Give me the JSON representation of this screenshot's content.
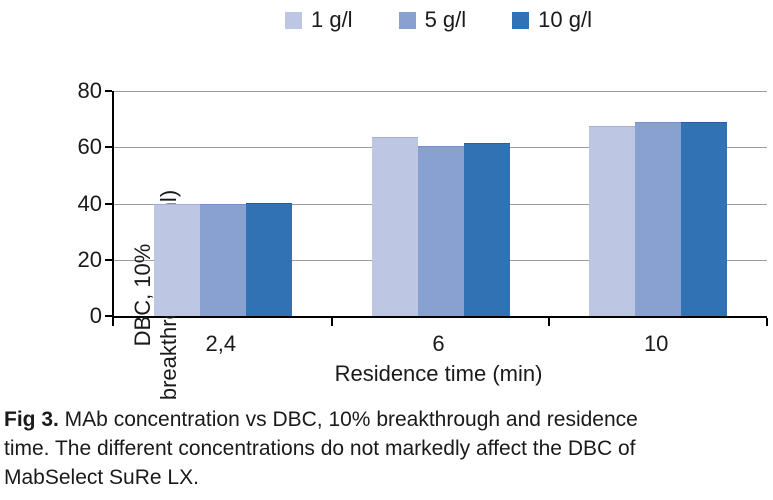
{
  "chart_data": {
    "type": "bar",
    "categories": [
      "2,4",
      "6",
      "10"
    ],
    "series": [
      {
        "name": "1 g/l",
        "color": "#bdc7e3",
        "border_color": "#a2afd6",
        "values": [
          40.0,
          63.5,
          67.5
        ]
      },
      {
        "name": "5 g/l",
        "color": "#88a1d0",
        "border_color": "#7590c4",
        "values": [
          39.7,
          60.5,
          69.0
        ]
      },
      {
        "name": "10 g/l",
        "color": "#3072b4",
        "border_color": "#27609c",
        "values": [
          40.3,
          61.5,
          69.0
        ]
      }
    ],
    "xlabel": "Residence time (min)",
    "ylabel_line1": "DBC, 10%",
    "ylabel_line2": "breakthrough (mg/ml)",
    "ylim": [
      0,
      80
    ],
    "yticks": [
      0,
      20,
      40,
      60,
      80
    ],
    "grid": true,
    "gridline_color": "#9d9d9d",
    "axis_color": "#000000",
    "legend_position": "top"
  },
  "caption": {
    "label": "Fig 3.",
    "line1_rest": " MAb concentration vs DBC, 10% breakthrough and residence",
    "line2": "time. The different concentrations do not markedly affect the DBC of",
    "line3": "MabSelect SuRe LX."
  }
}
